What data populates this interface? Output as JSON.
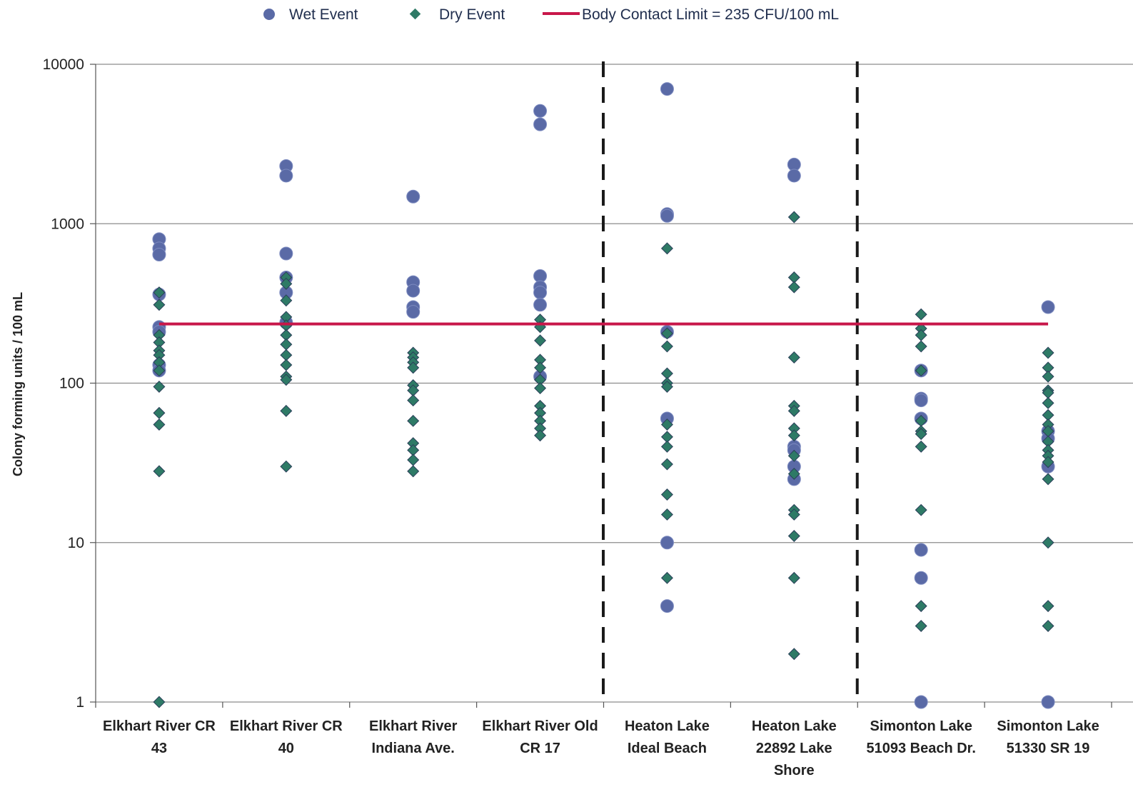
{
  "chart_data": {
    "type": "scatter",
    "title": "",
    "xlabel": "",
    "ylabel": "Colony forming units / 100 mL",
    "y_scale": "log",
    "ylim": [
      1,
      10000
    ],
    "y_ticks": [
      "10000",
      "1000",
      "100",
      "10",
      "1"
    ],
    "grid": "horizontal",
    "legend_position": "top",
    "categories": [
      [
        "Elkhart River CR",
        "43"
      ],
      [
        "Elkhart River CR",
        "40"
      ],
      [
        "Elkhart River",
        "Indiana Ave."
      ],
      [
        "Elkhart River Old",
        "CR 17"
      ],
      [
        "Heaton Lake",
        "Ideal Beach"
      ],
      [
        "Heaton Lake",
        "22892 Lake",
        "Shore"
      ],
      [
        "Simonton Lake",
        "51093 Beach Dr."
      ],
      [
        "Simonton Lake",
        "51330 SR 19"
      ]
    ],
    "group_separators_after_category": [
      4,
      6
    ],
    "reference_line": {
      "label": "Body Contact Limit = 235 CFU/100 mL",
      "value": 235,
      "color": "#c8174a"
    },
    "series": [
      {
        "name": "Wet Event",
        "marker": "circle",
        "color": "#5a6aa6",
        "values": [
          [
            800,
            700,
            640,
            360,
            225,
            210,
            130,
            120
          ],
          [
            2300,
            2000,
            650,
            460,
            370,
            240
          ],
          [
            1480,
            430,
            380,
            300,
            280
          ],
          [
            5100,
            4200,
            470,
            400,
            370,
            310,
            110
          ],
          [
            7000,
            1150,
            1120,
            210,
            60,
            10,
            4
          ],
          [
            2350,
            2000,
            40,
            38,
            30,
            25
          ],
          [
            120,
            80,
            78,
            60,
            9,
            6,
            1
          ],
          [
            300,
            50,
            45,
            30,
            1
          ]
        ]
      },
      {
        "name": "Dry Event",
        "marker": "diamond",
        "color": "#2e7a66",
        "values": [
          [
            370,
            310,
            200,
            180,
            160,
            150,
            135,
            120,
            95,
            65,
            55,
            28,
            1
          ],
          [
            460,
            420,
            330,
            260,
            230,
            200,
            175,
            150,
            130,
            110,
            105,
            67,
            30
          ],
          [
            155,
            145,
            135,
            125,
            97,
            90,
            78,
            58,
            42,
            38,
            33,
            28
          ],
          [
            250,
            225,
            185,
            140,
            125,
            105,
            93,
            72,
            65,
            58,
            52,
            47
          ],
          [
            700,
            205,
            170,
            115,
            100,
            95,
            55,
            46,
            40,
            31,
            20,
            15,
            6
          ],
          [
            1100,
            460,
            400,
            145,
            72,
            67,
            52,
            47,
            35,
            27,
            16,
            15,
            11,
            6,
            2
          ],
          [
            270,
            220,
            200,
            170,
            120,
            58,
            50,
            48,
            40,
            16,
            4,
            3
          ],
          [
            155,
            125,
            110,
            90,
            87,
            75,
            63,
            55,
            50,
            43,
            38,
            35,
            32,
            25,
            10,
            4,
            3
          ]
        ]
      }
    ]
  }
}
